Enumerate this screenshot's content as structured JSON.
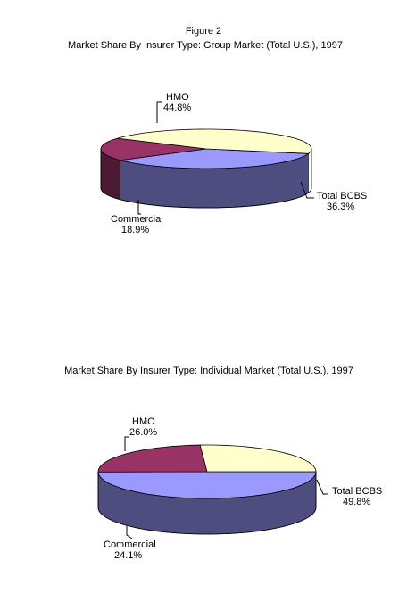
{
  "figure_label": "Figure 2",
  "chart_data": [
    {
      "type": "pie",
      "title": "Market Share By Insurer Type: Group Market (Total U.S.), 1997",
      "unit": "%",
      "slices": [
        {
          "label": "Total BCBS",
          "value": 36.3,
          "value_text": "36.3%",
          "color": "#9999ff",
          "side_color": "#4d4d80"
        },
        {
          "label": "Commercial",
          "value": 18.9,
          "value_text": "18.9%",
          "color": "#993366",
          "side_color": "#4d1a33"
        },
        {
          "label": "HMO",
          "value": 44.8,
          "value_text": "44.8%",
          "color": "#ffffcc",
          "side_color": "#808066"
        }
      ]
    },
    {
      "type": "pie",
      "title": "Market Share By Insurer Type: Individual Market (Total U.S.), 1997",
      "unit": "%",
      "slices": [
        {
          "label": "Total BCBS",
          "value": 49.8,
          "value_text": "49.8%",
          "color": "#9999ff",
          "side_color": "#4d4d80"
        },
        {
          "label": "Commercial",
          "value": 24.1,
          "value_text": "24.1%",
          "color": "#993366",
          "side_color": "#4d1a33"
        },
        {
          "label": "HMO",
          "value": 26.0,
          "value_text": "26.0%",
          "color": "#ffffcc",
          "side_color": "#808066"
        }
      ]
    }
  ]
}
